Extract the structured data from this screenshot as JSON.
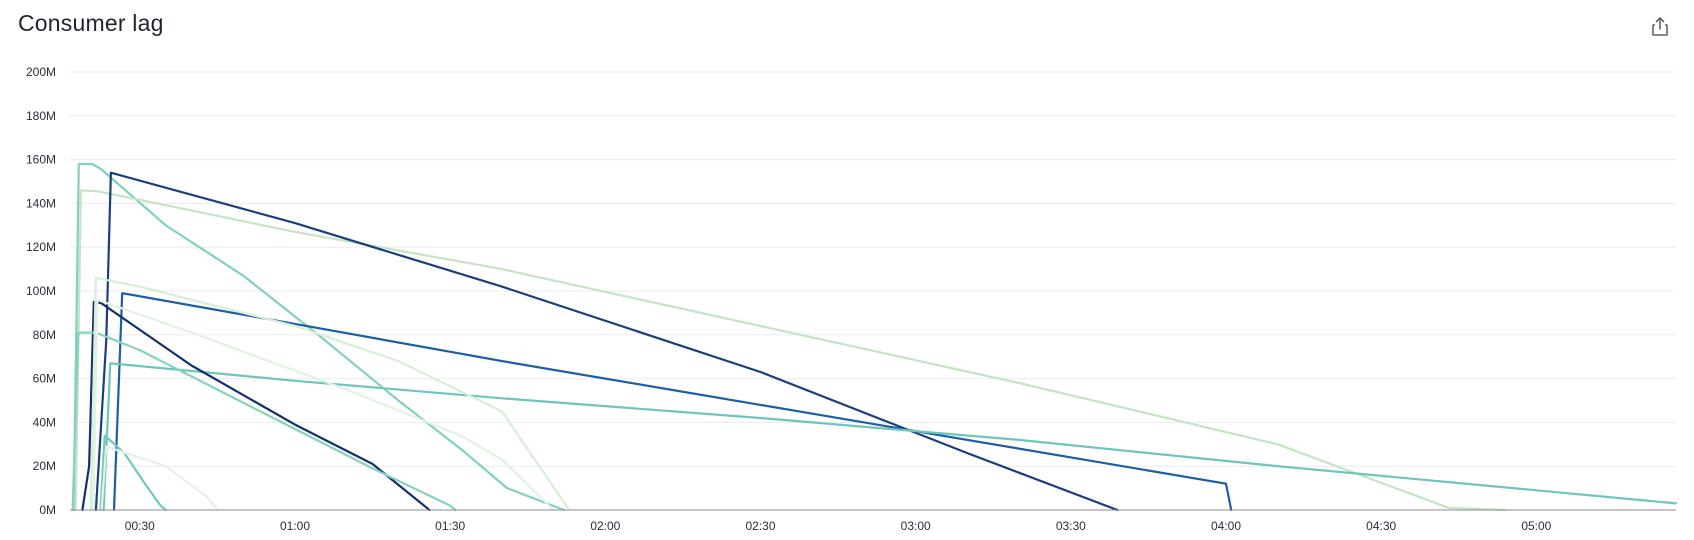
{
  "panel": {
    "title": "Consumer lag",
    "share_icon": "share-export-icon"
  },
  "chart_data": {
    "type": "line",
    "title": "Consumer lag",
    "xlabel": "",
    "ylabel": "",
    "x_unit": "minutes",
    "xlim": [
      16.5,
      327
    ],
    "ylim": [
      0,
      200
    ],
    "y_unit": "M",
    "grid": true,
    "legend": "none",
    "y_ticks": [
      {
        "value": 0,
        "label": "0M"
      },
      {
        "value": 20,
        "label": "20M"
      },
      {
        "value": 40,
        "label": "40M"
      },
      {
        "value": 60,
        "label": "60M"
      },
      {
        "value": 80,
        "label": "80M"
      },
      {
        "value": 100,
        "label": "100M"
      },
      {
        "value": 120,
        "label": "120M"
      },
      {
        "value": 140,
        "label": "140M"
      },
      {
        "value": 160,
        "label": "160M"
      },
      {
        "value": 180,
        "label": "180M"
      },
      {
        "value": 200,
        "label": "200M"
      }
    ],
    "x_ticks": [
      {
        "value": 30,
        "label": "00:30"
      },
      {
        "value": 60,
        "label": "01:00"
      },
      {
        "value": 90,
        "label": "01:30"
      },
      {
        "value": 120,
        "label": "02:00"
      },
      {
        "value": 150,
        "label": "02:30"
      },
      {
        "value": 180,
        "label": "03:00"
      },
      {
        "value": 210,
        "label": "03:30"
      },
      {
        "value": 240,
        "label": "04:00"
      },
      {
        "value": 270,
        "label": "04:30"
      },
      {
        "value": 300,
        "label": "05:00"
      }
    ],
    "series": [
      {
        "color": "#82d0c0",
        "points": [
          [
            17.2,
            0
          ],
          [
            18.2,
            158
          ],
          [
            20.8,
            158
          ],
          [
            22.3,
            156
          ],
          [
            24.3,
            152
          ],
          [
            35,
            130
          ],
          [
            50,
            107
          ],
          [
            65,
            79
          ],
          [
            80,
            50
          ],
          [
            92,
            28
          ],
          [
            101,
            10
          ],
          [
            112,
            0
          ]
        ]
      },
      {
        "color": "#c6e4c4",
        "points": [
          [
            17.6,
            0
          ],
          [
            18.6,
            146
          ],
          [
            22,
            145.5
          ],
          [
            60,
            127
          ],
          [
            100,
            110
          ],
          [
            150,
            84
          ],
          [
            200,
            58
          ],
          [
            250,
            30
          ],
          [
            283,
            1
          ],
          [
            294,
            0
          ]
        ]
      },
      {
        "color": "#1a3f7e",
        "points": [
          [
            21.5,
            0
          ],
          [
            23.5,
            77
          ],
          [
            24.4,
            154
          ],
          [
            60,
            131
          ],
          [
            100,
            102
          ],
          [
            150,
            63
          ],
          [
            190,
            26
          ],
          [
            219,
            0
          ]
        ]
      },
      {
        "color": "#1c5ea2",
        "points": [
          [
            25,
            0
          ],
          [
            26.6,
            99
          ],
          [
            60,
            85
          ],
          [
            100,
            68
          ],
          [
            150,
            48
          ],
          [
            190,
            32
          ],
          [
            240,
            12
          ],
          [
            241,
            0
          ]
        ]
      },
      {
        "color": "#6ec6b8",
        "points": [
          [
            23,
            0
          ],
          [
            24.3,
            67
          ],
          [
            60,
            59
          ],
          [
            100,
            51
          ],
          [
            150,
            42
          ],
          [
            200,
            32
          ],
          [
            250,
            20
          ],
          [
            300,
            9
          ],
          [
            327,
            3
          ]
        ]
      },
      {
        "color": "#14306a",
        "points": [
          [
            18.9,
            0
          ],
          [
            20.2,
            20
          ],
          [
            21.1,
            95
          ],
          [
            22.5,
            94.5
          ],
          [
            40,
            66
          ],
          [
            60,
            39
          ],
          [
            75,
            21
          ],
          [
            86,
            0
          ]
        ]
      },
      {
        "color": "#88d0bf",
        "points": [
          [
            17,
            0
          ],
          [
            18.1,
            81
          ],
          [
            21.5,
            81
          ],
          [
            30,
            73
          ],
          [
            45,
            55
          ],
          [
            60,
            37
          ],
          [
            75,
            19
          ],
          [
            90,
            2
          ],
          [
            91,
            0
          ]
        ]
      },
      {
        "color": "#d8eed6",
        "points": [
          [
            20.5,
            0
          ],
          [
            21.5,
            106
          ],
          [
            30,
            102
          ],
          [
            60,
            84
          ],
          [
            80,
            68
          ],
          [
            100,
            45
          ],
          [
            113,
            0
          ]
        ]
      },
      {
        "color": "#e3f1e2",
        "points": [
          [
            21,
            0
          ],
          [
            21.8,
            96
          ],
          [
            40,
            81
          ],
          [
            70,
            55
          ],
          [
            92,
            34
          ],
          [
            100,
            23
          ],
          [
            110,
            0
          ]
        ]
      },
      {
        "color": "#74c8bb",
        "points": [
          [
            22.4,
            0
          ],
          [
            23.2,
            34
          ],
          [
            27,
            26
          ],
          [
            31,
            12
          ],
          [
            34,
            2
          ],
          [
            35,
            0
          ]
        ]
      },
      {
        "color": "#e6f0e6",
        "points": [
          [
            22.6,
            0
          ],
          [
            23.5,
            29
          ],
          [
            35,
            20
          ],
          [
            43,
            6
          ],
          [
            45,
            0
          ]
        ]
      }
    ]
  }
}
